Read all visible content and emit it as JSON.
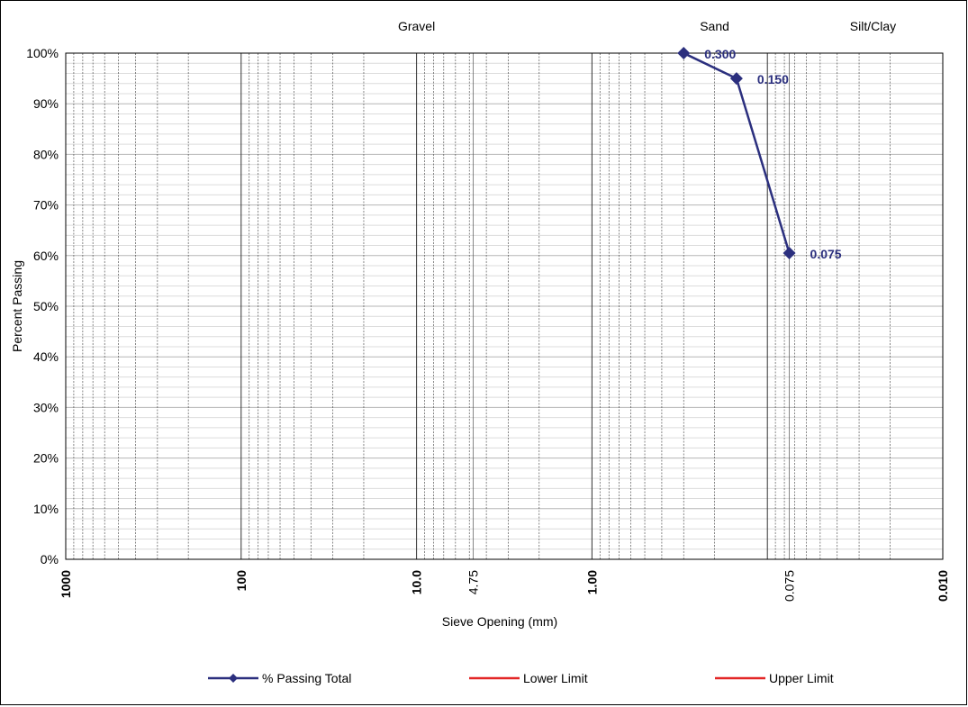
{
  "chart_data": {
    "type": "scatter",
    "x_scale": "log",
    "x_reversed": true,
    "xlim": [
      1000,
      0.01
    ],
    "ylim": [
      0,
      100
    ],
    "xlabel": "Sieve Opening (mm)",
    "ylabel": "Percent Passing",
    "y_ticks": [
      "0%",
      "10%",
      "20%",
      "30%",
      "40%",
      "50%",
      "60%",
      "70%",
      "80%",
      "90%",
      "100%"
    ],
    "x_ticks": [
      {
        "value": 1000,
        "label": "1000",
        "bold": true
      },
      {
        "value": 100,
        "label": "100",
        "bold": true
      },
      {
        "value": 10,
        "label": "10.0",
        "bold": true
      },
      {
        "value": 4.75,
        "label": "4.75",
        "bold": false
      },
      {
        "value": 1,
        "label": "1.00",
        "bold": true
      },
      {
        "value": 0.075,
        "label": "0.075",
        "bold": false
      },
      {
        "value": 0.01,
        "label": "0.010",
        "bold": true
      }
    ],
    "zones": [
      {
        "label": "Gravel",
        "value": 10
      },
      {
        "label": "Sand",
        "value": 0.2
      },
      {
        "label": "Silt/Clay",
        "value": 0.025
      }
    ],
    "grid": true,
    "legend_position": "bottom",
    "series": [
      {
        "name": "% Passing Total",
        "color": "#2b2f7e",
        "marker": "diamond",
        "x": [
          0.3,
          0.15,
          0.075
        ],
        "y": [
          100,
          95,
          60.5
        ],
        "point_labels": [
          "0.300",
          "0.150",
          "0.075"
        ]
      },
      {
        "name": "Lower Limit",
        "color": "#e32626",
        "x": [],
        "y": []
      },
      {
        "name": "Upper Limit",
        "color": "#e32626",
        "x": [],
        "y": []
      }
    ]
  }
}
